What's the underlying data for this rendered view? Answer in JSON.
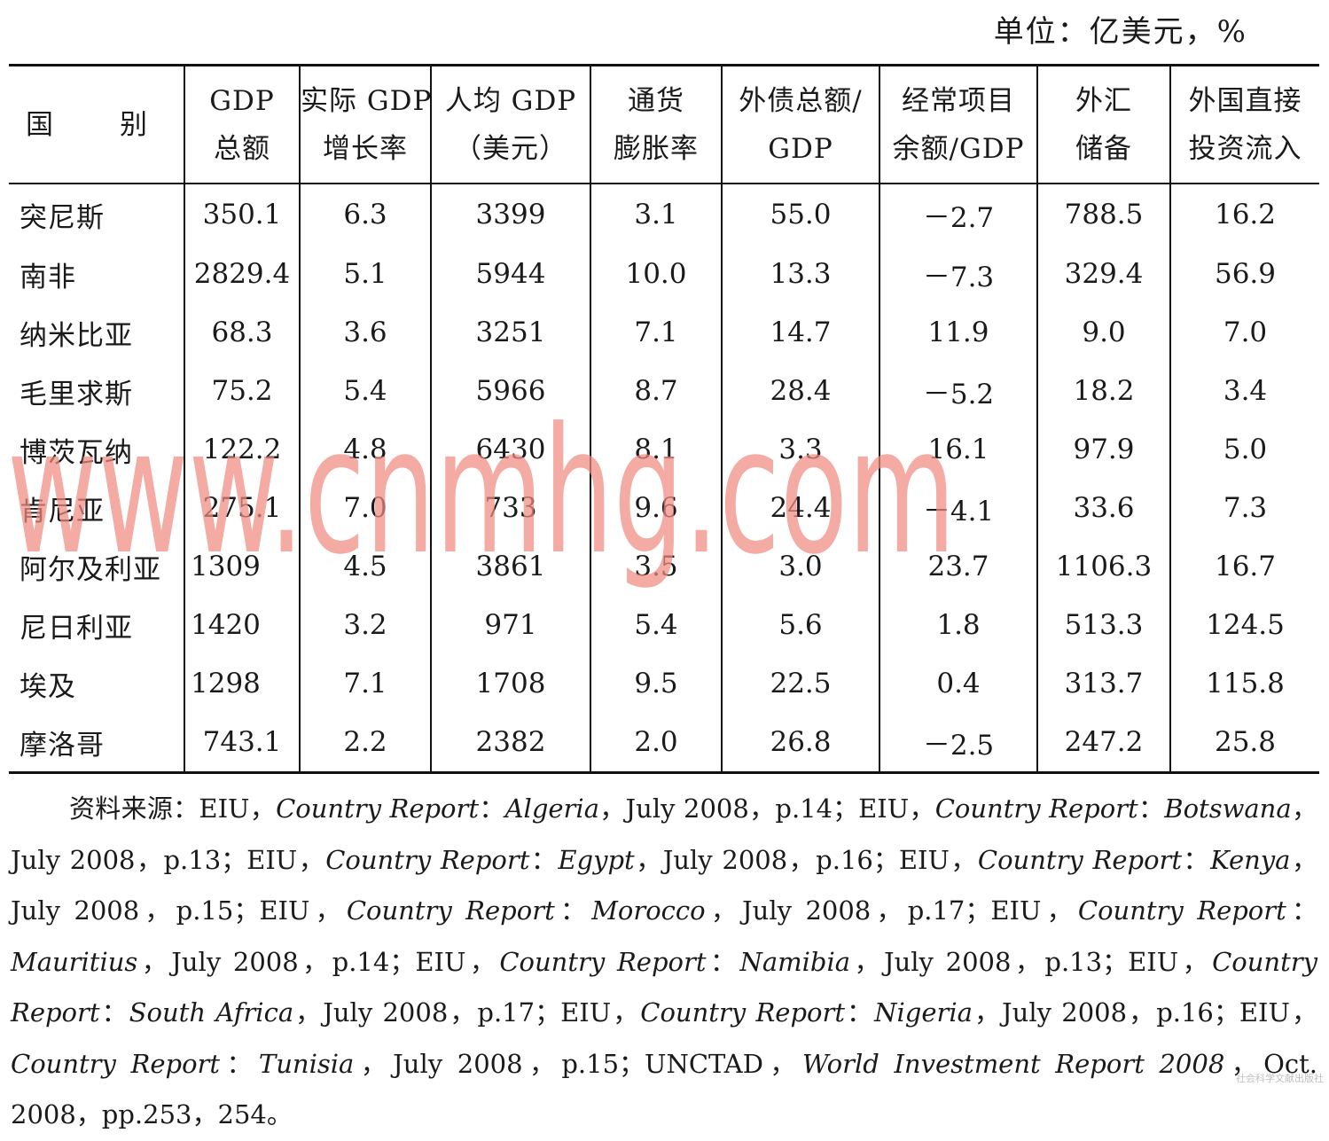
{
  "unit": "单位：亿美元，%",
  "headers": [
    {
      "l1": "国　别",
      "l2": ""
    },
    {
      "l1": "GDP",
      "l2": "总额"
    },
    {
      "l1": "实际 GDP",
      "l2": "增长率"
    },
    {
      "l1": "人均 GDP",
      "l2": "（美元）"
    },
    {
      "l1": "通货",
      "l2": "膨胀率"
    },
    {
      "l1": "外债总额/",
      "l2": "GDP"
    },
    {
      "l1": "经常项目",
      "l2": "余额/GDP"
    },
    {
      "l1": "外汇",
      "l2": "储备"
    },
    {
      "l1": "外国直接",
      "l2": "投资流入"
    }
  ],
  "rows": [
    [
      "突尼斯",
      "350.1",
      "6.3",
      "3399",
      "3.1",
      "55.0",
      "－2.7",
      "788.5",
      "16.2"
    ],
    [
      "南非",
      "2829.4",
      "5.1",
      "5944",
      "10.0",
      "13.3",
      "－7.3",
      "329.4",
      "56.9"
    ],
    [
      "纳米比亚",
      "68.3",
      "3.6",
      "3251",
      "7.1",
      "14.7",
      "11.9",
      "9.0",
      "7.0"
    ],
    [
      "毛里求斯",
      "75.2",
      "5.4",
      "5966",
      "8.7",
      "28.4",
      "－5.2",
      "18.2",
      "3.4"
    ],
    [
      "博茨瓦纳",
      "122.2",
      "4.8",
      "6430",
      "8.1",
      "3.3",
      "16.1",
      "97.9",
      "5.0"
    ],
    [
      "肯尼亚",
      "275.1",
      "7.0",
      "733",
      "9.6",
      "24.4",
      "－4.1",
      "33.6",
      "7.3"
    ],
    [
      "阿尔及利亚",
      "1309",
      "4.5",
      "3861",
      "3.5",
      "3.0",
      "23.7",
      "1106.3",
      "16.7"
    ],
    [
      "尼日利亚",
      "1420",
      "3.2",
      "971",
      "5.4",
      "5.6",
      "1.8",
      "513.3",
      "124.5"
    ],
    [
      "埃及",
      "1298",
      "7.1",
      "1708",
      "9.5",
      "22.5",
      "0.4",
      "313.7",
      "115.8"
    ],
    [
      "摩洛哥",
      "743.1",
      "2.2",
      "2382",
      "2.0",
      "26.8",
      "－2.5",
      "247.2",
      "25.8"
    ]
  ],
  "source": [
    {
      "t": "资料来源：EIU，"
    },
    {
      "t": "Country Report",
      "i": true
    },
    {
      "t": "："
    },
    {
      "t": "Algeria",
      "i": true
    },
    {
      "t": "，July 2008，p.14；EIU，"
    },
    {
      "t": "Country Report",
      "i": true
    },
    {
      "t": "："
    },
    {
      "t": "Botswana",
      "i": true
    },
    {
      "t": "，July 2008，p.13；EIU，"
    },
    {
      "t": "Country Report",
      "i": true
    },
    {
      "t": "："
    },
    {
      "t": "Egypt",
      "i": true
    },
    {
      "t": "，July 2008，p.16；EIU，"
    },
    {
      "t": "Country Report",
      "i": true
    },
    {
      "t": "："
    },
    {
      "t": "Kenya",
      "i": true
    },
    {
      "t": "，July 2008，p.15；EIU，"
    },
    {
      "t": "Country Report",
      "i": true
    },
    {
      "t": "："
    },
    {
      "t": "Morocco",
      "i": true
    },
    {
      "t": "，July 2008，p.17；EIU，"
    },
    {
      "t": "Country Report",
      "i": true
    },
    {
      "t": "："
    },
    {
      "t": "Mauritius",
      "i": true
    },
    {
      "t": "，July 2008，p.14；EIU，"
    },
    {
      "t": "Country Report",
      "i": true
    },
    {
      "t": "："
    },
    {
      "t": "Namibia",
      "i": true
    },
    {
      "t": "，July 2008，p.13；EIU，"
    },
    {
      "t": "Country Report",
      "i": true
    },
    {
      "t": "："
    },
    {
      "t": "South Africa",
      "i": true
    },
    {
      "t": "，July 2008，p.17；EIU，"
    },
    {
      "t": "Country Report",
      "i": true
    },
    {
      "t": "："
    },
    {
      "t": "Nigeria",
      "i": true
    },
    {
      "t": "，July 2008，p.16；EIU，"
    },
    {
      "t": "Country Report",
      "i": true
    },
    {
      "t": "："
    },
    {
      "t": "Tunisia",
      "i": true
    },
    {
      "t": "，July 2008，p.15；UNCTAD，"
    },
    {
      "t": "World Investment Report 2008",
      "i": true
    },
    {
      "t": "，Oct. 2008，pp.253，254。"
    }
  ],
  "watermark": "www.cnmhg.com",
  "watermark_color": "#f08a80",
  "stamp": "社会科学文献出版社"
}
